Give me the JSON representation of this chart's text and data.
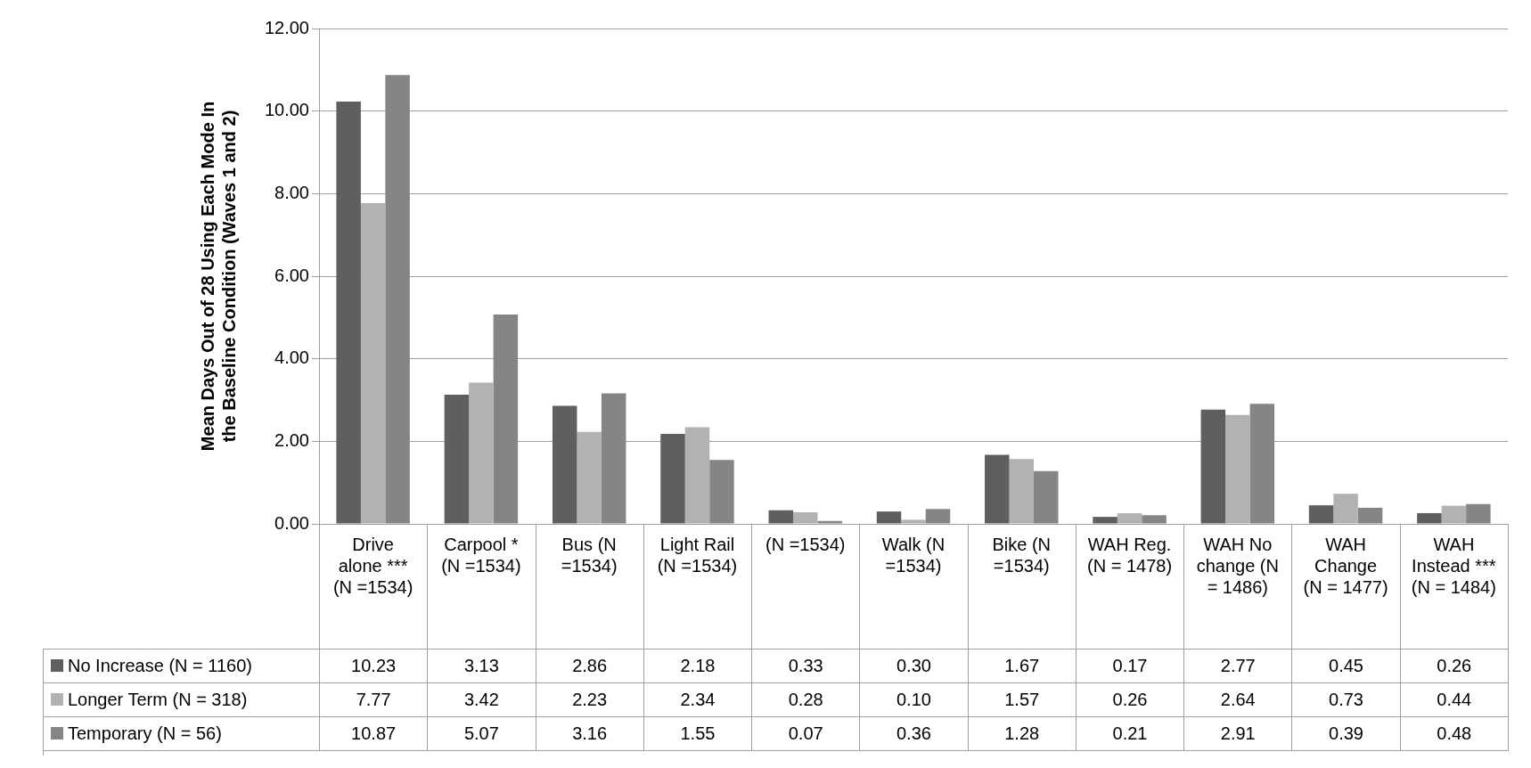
{
  "chart_data": {
    "type": "bar",
    "ylabel": "Mean Days Out of 28 Using Each Mode In the Baseline Condition (Waves 1 and 2)",
    "categories": [
      "Drive alone *** (N =1534)",
      "Carpool * (N =1534)",
      "Bus (N =1534)",
      "Light Rail (N =1534)",
      "(N =1534)",
      "Walk (N =1534)",
      "Bike (N =1534)",
      "WAH Reg. (N = 1478)",
      "WAH No change (N = 1486)",
      "WAH Change (N = 1477)",
      "WAH Instead *** (N = 1484)"
    ],
    "series": [
      {
        "name": "No Increase (N = 1160)",
        "color": "#5f5f5f",
        "values": [
          10.23,
          3.13,
          2.86,
          2.18,
          0.33,
          0.3,
          1.67,
          0.17,
          2.77,
          0.45,
          0.26
        ],
        "value_labels": [
          "10.23",
          "3.13",
          "2.86",
          "2.18",
          "0.33",
          "0.30",
          "1.67",
          "0.17",
          "2.77",
          "0.45",
          "0.26"
        ]
      },
      {
        "name": "Longer Term (N = 318)",
        "color": "#b2b2b2",
        "values": [
          7.77,
          3.42,
          2.23,
          2.34,
          0.28,
          0.1,
          1.57,
          0.26,
          2.64,
          0.73,
          0.44
        ],
        "value_labels": [
          "7.77",
          "3.42",
          "2.23",
          "2.34",
          "0.28",
          "0.10",
          "1.57",
          "0.26",
          "2.64",
          "0.73",
          "0.44"
        ]
      },
      {
        "name": "Temporary (N = 56)",
        "color": "#858585",
        "values": [
          10.87,
          5.07,
          3.16,
          1.55,
          0.07,
          0.36,
          1.28,
          0.21,
          2.91,
          0.39,
          0.48
        ],
        "value_labels": [
          "10.87",
          "5.07",
          "3.16",
          "1.55",
          "0.07",
          "0.36",
          "1.28",
          "0.21",
          "2.91",
          "0.39",
          "0.48"
        ]
      }
    ],
    "ylim": [
      0,
      12
    ],
    "yticks": [
      {
        "value": 0,
        "label": "0.00"
      },
      {
        "value": 2,
        "label": "2.00"
      },
      {
        "value": 4,
        "label": "4.00"
      },
      {
        "value": 6,
        "label": "6.00"
      },
      {
        "value": 8,
        "label": "8.00"
      },
      {
        "value": 10,
        "label": "10.00"
      },
      {
        "value": 12,
        "label": "12.00"
      }
    ],
    "grid": "y",
    "legend": "bottom"
  }
}
